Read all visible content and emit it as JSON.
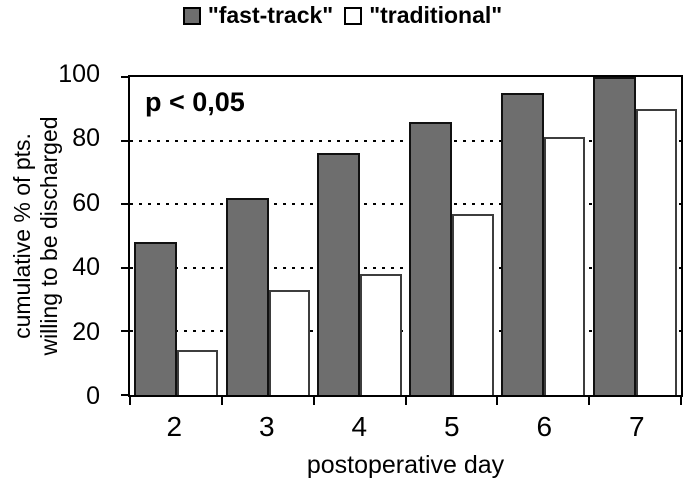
{
  "chart_data": {
    "type": "bar",
    "title": "",
    "categories": [
      "2",
      "3",
      "4",
      "5",
      "6",
      "7"
    ],
    "series": [
      {
        "name": "\"fast-track\"",
        "values": [
          48,
          62,
          76,
          86,
          95,
          100
        ],
        "fill": "#6e6e6e",
        "border": "#111111"
      },
      {
        "name": "\"traditional\"",
        "values": [
          14,
          33,
          38,
          57,
          81,
          90
        ],
        "fill": "#ffffff",
        "border": "#3d3d3d"
      }
    ],
    "xlabel": "postoperative day",
    "ylabel": "cumulative % of pts. willing to be discharged",
    "ylabel_lines": [
      "cumulative % of pts.",
      "willing to be discharged"
    ],
    "ylim": [
      0,
      100
    ],
    "yticks": [
      0,
      20,
      40,
      60,
      80,
      100
    ],
    "gridline_values": [
      20,
      40,
      60,
      80
    ],
    "grid_style": "dotted",
    "legend_position": "top-center",
    "annotation": "p < 0,05",
    "colors": {
      "axis": "#000000",
      "text": "#000000",
      "background": "#ffffff"
    }
  }
}
